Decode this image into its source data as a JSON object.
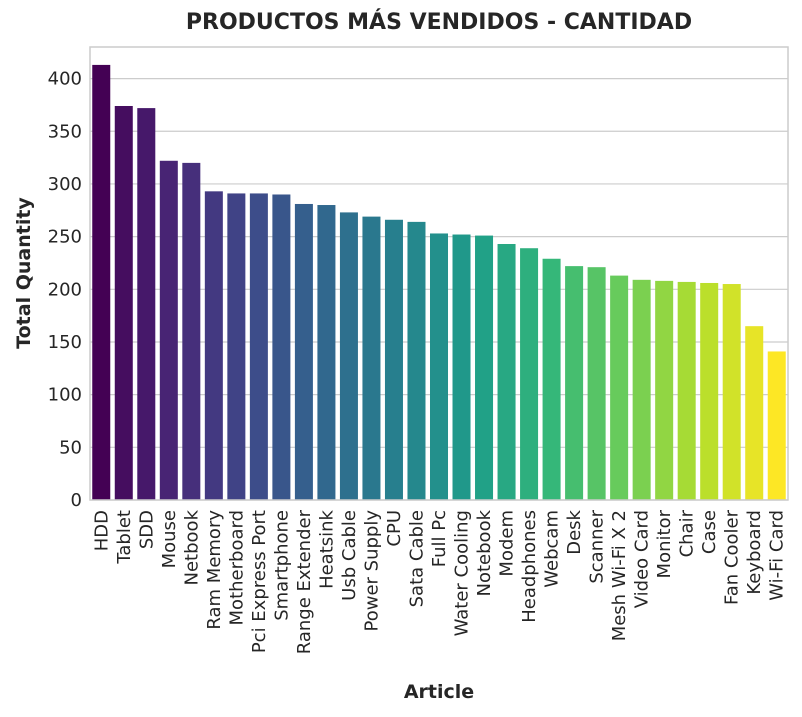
{
  "chart_data": {
    "type": "bar",
    "title": "PRODUCTOS MÁS VENDIDOS - CANTIDAD",
    "xlabel": "Article",
    "ylabel": "Total Quantity",
    "ylim": [
      0,
      430
    ],
    "yticks": [
      0,
      50,
      100,
      150,
      200,
      250,
      300,
      350,
      400
    ],
    "grid": true,
    "palette": "viridis",
    "categories": [
      "HDD",
      "Tablet",
      "SDD",
      "Mouse",
      "Netbook",
      "Ram Memory",
      "Motherboard",
      "Pci Express Port",
      "Smartphone",
      "Range Extender",
      "Heatsink",
      "Usb Cable",
      "Power Supply",
      "CPU",
      "Sata Cable",
      "Full Pc",
      "Water Cooling",
      "Notebook",
      "Modem",
      "Headphones",
      "Webcam",
      "Desk",
      "Scanner",
      "Mesh Wi-Fi X 2",
      "Video Card",
      "Monitor",
      "Chair",
      "Case",
      "Fan Cooler",
      "Keyboard",
      "Wi-Fi Card"
    ],
    "values": [
      413,
      374,
      372,
      322,
      320,
      293,
      291,
      291,
      290,
      281,
      280,
      273,
      269,
      266,
      264,
      253,
      252,
      251,
      243,
      239,
      229,
      222,
      221,
      213,
      209,
      208,
      207,
      206,
      205,
      165,
      141
    ]
  }
}
